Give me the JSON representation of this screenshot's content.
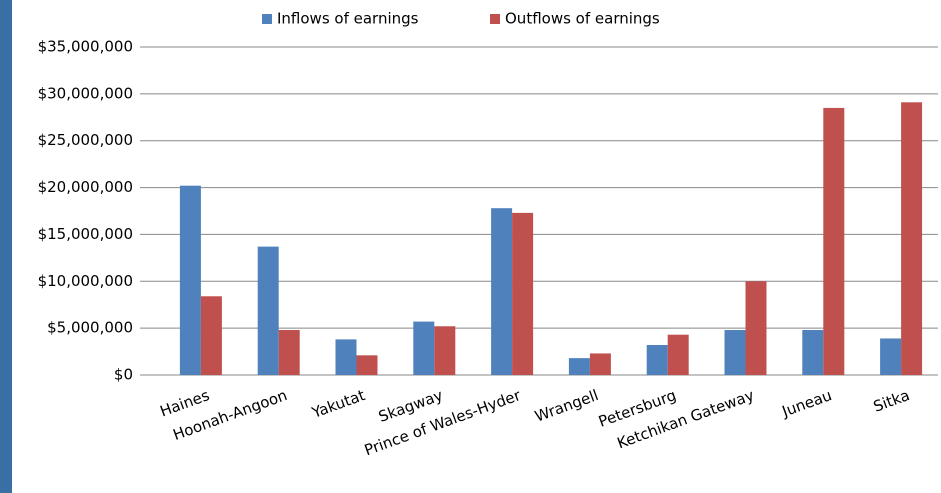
{
  "chart_data": {
    "type": "bar",
    "categories": [
      "Haines",
      "Hoonah-Angoon",
      "Yakutat",
      "Skagway",
      "Prince of Wales-Hyder",
      "Wrangell",
      "Petersburg",
      "Ketchikan Gateway",
      "Juneau",
      "Sitka"
    ],
    "series": [
      {
        "name": "Inflows of earnings",
        "color": "#4f81bd",
        "values": [
          20200000,
          13700000,
          3800000,
          5700000,
          17800000,
          1800000,
          3200000,
          4800000,
          4800000,
          3900000
        ]
      },
      {
        "name": "Outflows of earnings",
        "color": "#c0504d",
        "values": [
          8400000,
          4800000,
          2100000,
          5200000,
          17300000,
          2300000,
          4300000,
          10000000,
          28500000,
          29100000
        ]
      }
    ],
    "ylim": [
      0,
      35000000
    ],
    "yticks": [
      {
        "value": 0,
        "label": "$0"
      },
      {
        "value": 5000000,
        "label": "$5,000,000"
      },
      {
        "value": 10000000,
        "label": "$10,000,000"
      },
      {
        "value": 15000000,
        "label": "$15,000,000"
      },
      {
        "value": 20000000,
        "label": "$20,000,000"
      },
      {
        "value": 25000000,
        "label": "$25,000,000"
      },
      {
        "value": 30000000,
        "label": "$30,000,000"
      },
      {
        "value": 35000000,
        "label": "$35,000,000"
      }
    ],
    "grid": true,
    "legend": "top"
  }
}
